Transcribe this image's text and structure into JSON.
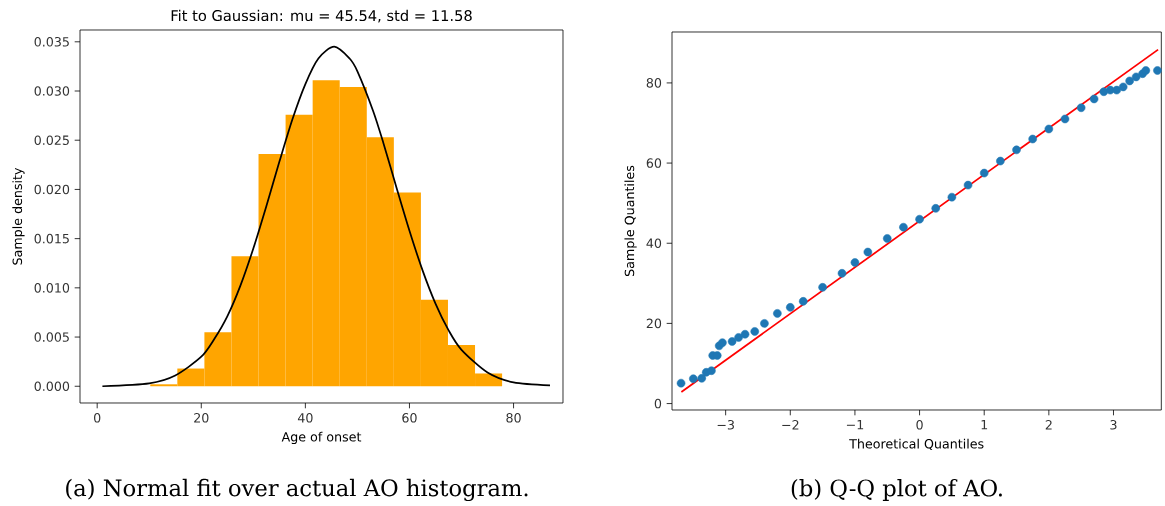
{
  "chart_data": [
    {
      "type": "histogram",
      "title": "Fit to Gaussian: mu = 45.54,  std = 11.58",
      "xlabel": "Age of onset",
      "ylabel": "Sample density",
      "bins": [
        10.2,
        15.4,
        20.6,
        25.8,
        31.0,
        36.2,
        41.4,
        46.6,
        51.8,
        57.0,
        62.2,
        67.4,
        72.6,
        77.8
      ],
      "values": [
        0.0002,
        0.0018,
        0.0055,
        0.0132,
        0.0236,
        0.0276,
        0.0311,
        0.0304,
        0.0253,
        0.0197,
        0.0088,
        0.0042,
        0.0013
      ],
      "color": "#ffa500",
      "series": [
        {
          "type": "line",
          "color": "#000000",
          "x": [
            1,
            10,
            15,
            20,
            22.5,
            25,
            27.5,
            30,
            32.5,
            35,
            37.5,
            40,
            42.5,
            45.54,
            48.5,
            50,
            53,
            55,
            57.5,
            60,
            62.5,
            65,
            67.5,
            70,
            75,
            80,
            87
          ],
          "values": [
            0.0,
            0.0003,
            0.0011,
            0.003,
            0.0048,
            0.0071,
            0.0102,
            0.014,
            0.0183,
            0.0228,
            0.0271,
            0.0307,
            0.0333,
            0.0345,
            0.0333,
            0.032,
            0.028,
            0.0247,
            0.0202,
            0.0158,
            0.0118,
            0.0084,
            0.0057,
            0.0037,
            0.0014,
            0.0004,
            0.0001
          ]
        }
      ],
      "xlim": [
        -3.3,
        89.5
      ],
      "ylim": [
        -0.0017,
        0.0362
      ],
      "xticks": [
        0,
        20,
        40,
        60,
        80
      ],
      "yticks": [
        {
          "value": 0,
          "label": "0.000"
        },
        {
          "value": 0.005,
          "label": "0.005"
        },
        {
          "value": 0.01,
          "label": "0.010"
        },
        {
          "value": 0.015,
          "label": "0.015"
        },
        {
          "value": 0.02,
          "label": "0.020"
        },
        {
          "value": 0.025,
          "label": "0.025"
        },
        {
          "value": 0.03,
          "label": "0.030"
        },
        {
          "value": 0.035,
          "label": "0.035"
        }
      ],
      "grid": false,
      "annotations": [
        "(a) Normal fit over actual AO histogram."
      ]
    },
    {
      "type": "scatter",
      "xlabel": "Theoretical Quantiles",
      "ylabel": "Sample Quantiles",
      "series": [
        {
          "type": "scatter",
          "color": "#1f77b4",
          "marker": "circle",
          "x": [
            -3.69,
            -3.5,
            -3.37,
            -3.3,
            -3.22,
            -3.2,
            -3.13,
            -3.1,
            -3.05,
            -2.9,
            -2.8,
            -2.7,
            -2.55,
            -2.4,
            -2.2,
            -2.0,
            -1.8,
            -1.5,
            -1.2,
            -1.0,
            -0.8,
            -0.5,
            -0.25,
            0.0,
            0.25,
            0.5,
            0.75,
            1.0,
            1.25,
            1.5,
            1.75,
            2.0,
            2.25,
            2.5,
            2.7,
            2.85,
            2.95,
            3.05,
            3.15,
            3.25,
            3.35,
            3.45,
            3.5,
            3.68
          ],
          "values": [
            5.1,
            6.2,
            6.3,
            7.8,
            8.2,
            12.0,
            12.0,
            14.4,
            15.2,
            15.5,
            16.5,
            17.3,
            18.0,
            20.0,
            22.5,
            24.0,
            25.5,
            29.0,
            32.5,
            35.2,
            37.8,
            41.2,
            44.0,
            46.0,
            48.7,
            51.5,
            54.5,
            57.5,
            60.5,
            63.3,
            66.0,
            68.5,
            71.0,
            73.8,
            76.0,
            77.8,
            78.2,
            78.2,
            79.0,
            80.5,
            81.5,
            82.3,
            83.1,
            83.1
          ]
        },
        {
          "type": "line",
          "color": "#ff0000",
          "marker": "none",
          "x": [
            -3.685,
            3.69
          ],
          "values": [
            2.9,
            88.3
          ]
        }
      ],
      "xlim": [
        -3.83,
        3.74
      ],
      "ylim": [
        -1.6,
        92.7
      ],
      "xticks": [
        {
          "value": -3,
          "label": "−3"
        },
        {
          "value": -2,
          "label": "−2"
        },
        {
          "value": -1,
          "label": "−1"
        },
        0,
        1,
        2,
        3
      ],
      "yticks": [
        0,
        20,
        40,
        60,
        80
      ],
      "grid": false,
      "annotations": [
        "(b) Q-Q plot of AO."
      ]
    }
  ]
}
